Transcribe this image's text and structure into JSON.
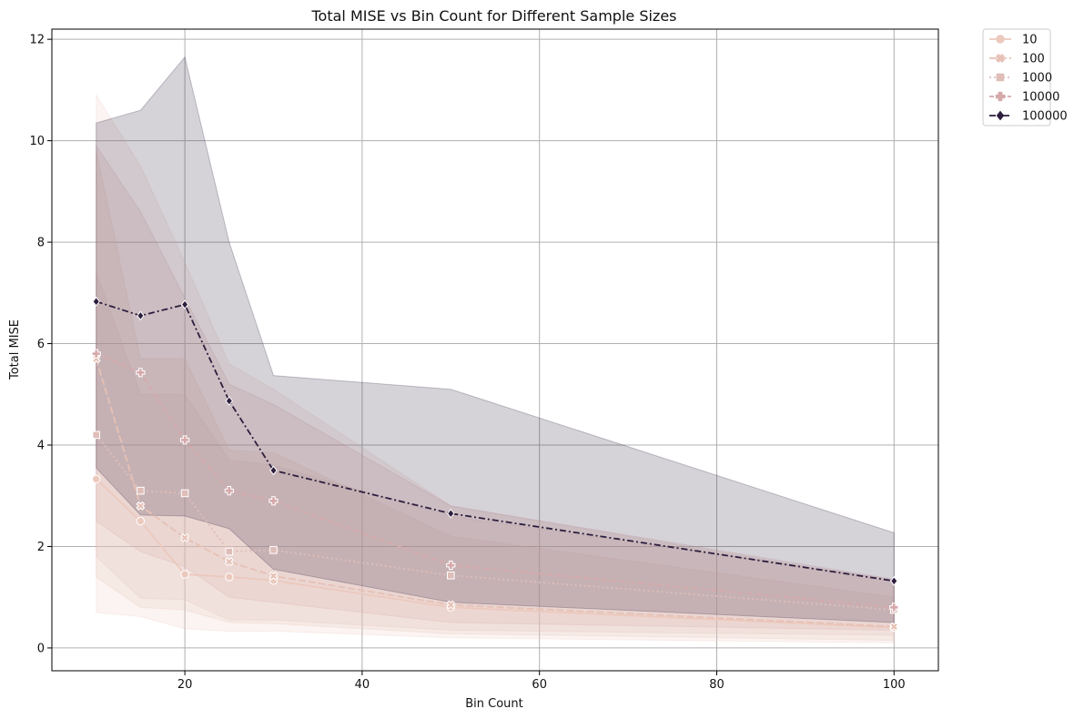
{
  "chart_data": {
    "type": "line",
    "title": "Total MISE vs Bin Count for Different Sample Sizes",
    "xlabel": "Bin Count",
    "ylabel": "Total MISE",
    "xlim": [
      5,
      105
    ],
    "ylim": [
      -0.45,
      12.2
    ],
    "xticks": [
      20,
      40,
      60,
      80,
      100
    ],
    "yticks": [
      0,
      2,
      4,
      6,
      8,
      10,
      12
    ],
    "grid": true,
    "legend_position": "outside-top-right",
    "x": [
      10,
      15,
      20,
      25,
      30,
      50,
      100
    ],
    "series": [
      {
        "name": "10",
        "color": "#ecc9bd",
        "marker": "circle",
        "dash": "solid",
        "values": [
          3.33,
          2.5,
          1.45,
          1.4,
          1.33,
          0.8,
          0.4
        ],
        "ci_low": [
          0.7,
          0.62,
          0.38,
          0.33,
          0.33,
          0.2,
          0.1
        ],
        "ci_high": [
          10.9,
          9.5,
          7.6,
          5.6,
          5.1,
          2.8,
          1.3
        ]
      },
      {
        "name": "100",
        "color": "#e6c1b5",
        "marker": "x",
        "dash": "8,3",
        "values": [
          5.7,
          2.8,
          2.17,
          1.7,
          1.42,
          0.85,
          0.42
        ],
        "ci_low": [
          1.4,
          0.8,
          0.75,
          0.5,
          0.48,
          0.28,
          0.15
        ],
        "ci_high": [
          9.8,
          5.7,
          5.7,
          3.9,
          3.85,
          2.2,
          1.0
        ]
      },
      {
        "name": "1000",
        "color": "#dfbdb8",
        "marker": "square",
        "dash": "2,3",
        "values": [
          4.2,
          3.1,
          3.05,
          1.9,
          1.93,
          1.43,
          0.75
        ],
        "ci_low": [
          1.8,
          0.98,
          0.95,
          0.55,
          0.55,
          0.35,
          0.25
        ],
        "ci_high": [
          7.4,
          5.0,
          5.0,
          3.7,
          3.6,
          2.6,
          1.35
        ]
      },
      {
        "name": "10000",
        "color": "#d6a8aa",
        "marker": "plus",
        "dash": "5,2,1,2",
        "values": [
          5.8,
          5.43,
          4.1,
          3.1,
          2.9,
          1.63,
          0.8
        ],
        "ci_low": [
          2.5,
          1.9,
          1.6,
          1.0,
          0.9,
          0.5,
          0.35
        ],
        "ci_high": [
          9.9,
          8.6,
          6.9,
          5.2,
          4.8,
          2.8,
          1.35
        ]
      },
      {
        "name": "100000",
        "color": "#2d1e3e",
        "marker": "diamond",
        "dash": "7,3,2,3",
        "values": [
          6.83,
          6.55,
          6.77,
          4.87,
          3.5,
          2.65,
          1.32
        ],
        "ci_low": [
          3.55,
          2.62,
          2.6,
          2.35,
          1.55,
          0.9,
          0.5
        ],
        "ci_high": [
          10.35,
          10.6,
          11.65,
          8.0,
          5.37,
          5.1,
          2.27
        ]
      }
    ]
  }
}
